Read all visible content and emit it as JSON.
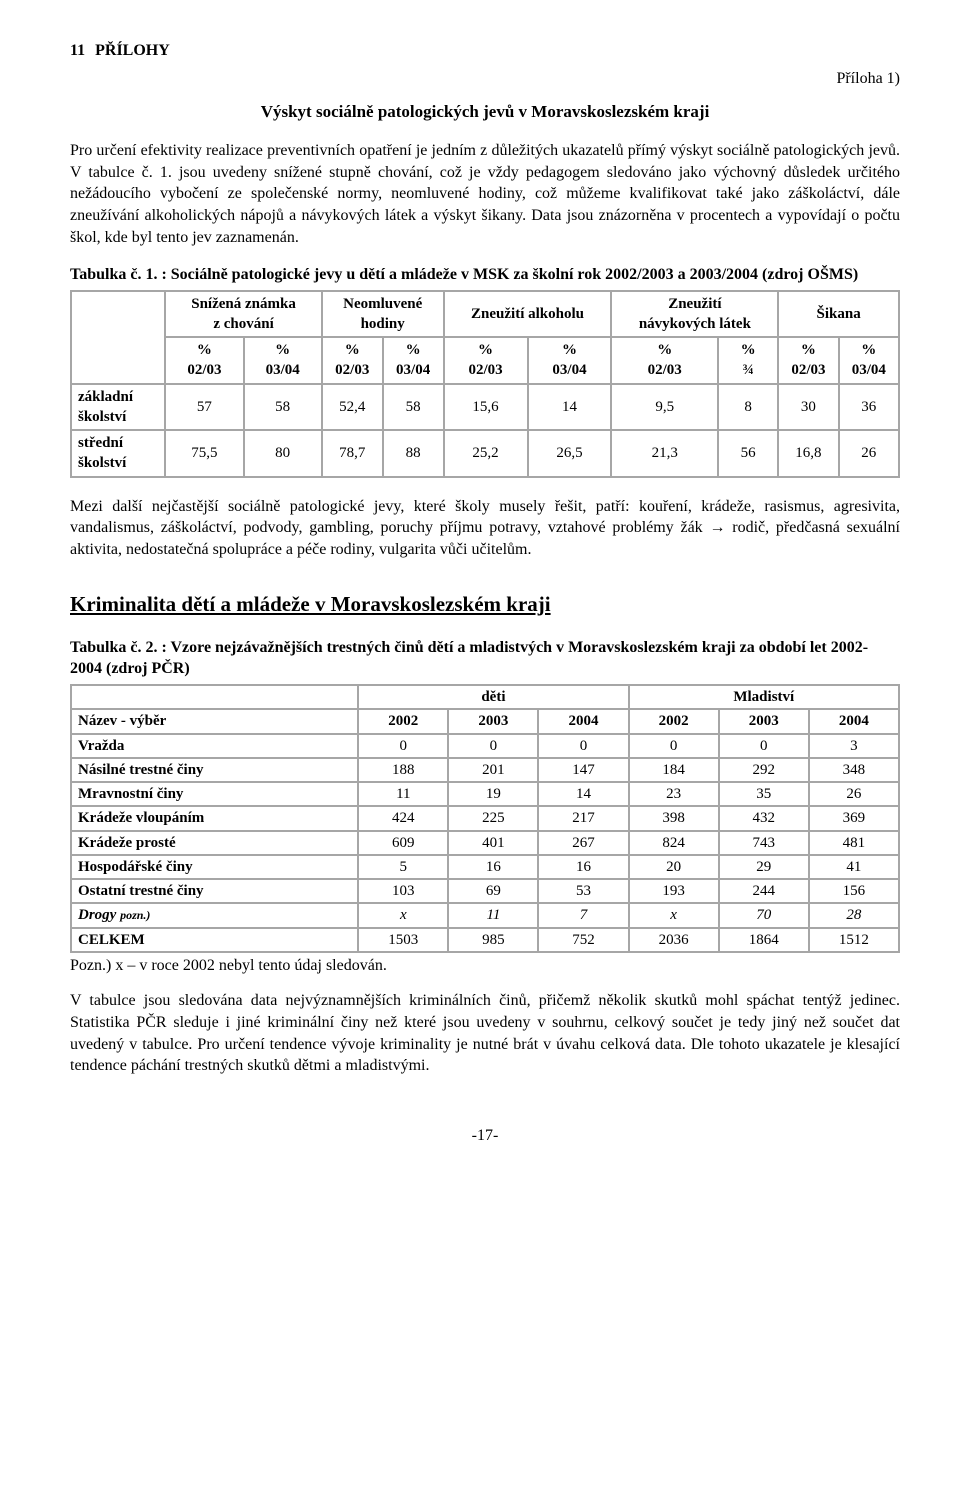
{
  "header": {
    "section_number": "11",
    "section_title": "PŘÍLOHY",
    "attachment_label": "Příloha 1)",
    "main_title": "Výskyt sociálně patologických jevů v Moravskoslezském kraji"
  },
  "paragraphs": {
    "intro": "Pro určení efektivity realizace preventivních opatření je jedním z důležitých ukazatelů přímý výskyt sociálně patologických jevů. V tabulce č. 1. jsou uvedeny snížené stupně chování, což je vždy pedagogem sledováno jako výchovný důsledek určitého nežádoucího vybočení ze společenské normy, neomluvené hodiny, což můžeme kvalifikovat také jako záškoláctví, dále zneužívání alkoholických nápojů a návykových látek a výskyt šikany. Data jsou znázorněna v procentech a vypovídají o počtu škol, kde byl tento jev zaznamenán.",
    "between": "Mezi další nejčastější sociálně patologické jevy, které školy musely řešit, patří: kouření, krádeže, rasismus, agresivita, vandalismus, záškoláctví, podvody, gambling, poruchy příjmu potravy, vztahové problémy žák → rodič, předčasná sexuální aktivita, nedostatečná spolupráce a péče rodiny, vulgarita vůči učitelům.",
    "after_t2_note": "Pozn.) x – v roce 2002 nebyl tento údaj sledován.",
    "closing": "V tabulce jsou sledována data nejvýznamnějších kriminálních činů, přičemž několik skutků mohl spáchat tentýž jedinec. Statistika PČR sleduje i jiné kriminální činy než které jsou uvedeny v souhrnu, celkový součet je tedy jiný než součet dat uvedený v tabulce. Pro určení tendence vývoje kriminality je nutné brát v úvahu celková data. Dle tohoto ukazatele je klesající tendence páchání trestných skutků dětmi a mladistvými."
  },
  "section2_heading": "Kriminalita dětí a mládeže v Moravskoslezském kraji",
  "table1": {
    "caption": "Tabulka č. 1. : Sociálně patologické jevy  u dětí a mládeže v MSK za školní rok 2002/2003 a 2003/2004 (zdroj OŠMS)",
    "groups": [
      {
        "label1": "Snížená známka",
        "label2": "z chování"
      },
      {
        "label1": "Neomluvené",
        "label2": "hodiny"
      },
      {
        "label1": "Zneužití alkoholu",
        "label2": ""
      },
      {
        "label1": "Zneužití",
        "label2": "návykových látek"
      },
      {
        "label1": "Šikana",
        "label2": ""
      }
    ],
    "subheaders": [
      "% 02/03",
      "% 03/04",
      "% 02/03",
      "% 03/04",
      "% 02/03",
      "% 03/04",
      "% 02/03",
      "% ¾",
      "% 02/03",
      "% 03/04"
    ],
    "rows": [
      {
        "label": "základní školství",
        "cells": [
          "57",
          "58",
          "52,4",
          "58",
          "15,6",
          "14",
          "9,5",
          "8",
          "30",
          "36"
        ]
      },
      {
        "label": "střední školství",
        "cells": [
          "75,5",
          "80",
          "78,7",
          "88",
          "25,2",
          "26,5",
          "21,3",
          "56",
          "16,8",
          "26"
        ]
      }
    ]
  },
  "table2": {
    "caption": "Tabulka č. 2. : Vzore nejzávažnějších trestných činů dětí a mladistvých v Moravskoslezském kraji za období let 2002-2004 (zdroj PČR)",
    "top_groups": [
      "děti",
      "Mladiství"
    ],
    "name_header": "Název - výběr",
    "years": [
      "2002",
      "2003",
      "2004",
      "2002",
      "2003",
      "2004"
    ],
    "rows": [
      {
        "name": "Vražda",
        "cells": [
          "0",
          "0",
          "0",
          "0",
          "0",
          "3"
        ],
        "bold": true
      },
      {
        "name": "Násilné trestné činy",
        "cells": [
          "188",
          "201",
          "147",
          "184",
          "292",
          "348"
        ],
        "bold": true
      },
      {
        "name": "Mravnostní činy",
        "cells": [
          "11",
          "19",
          "14",
          "23",
          "35",
          "26"
        ],
        "bold": true
      },
      {
        "name": "Krádeže vloupáním",
        "cells": [
          "424",
          "225",
          "217",
          "398",
          "432",
          "369"
        ],
        "bold": true
      },
      {
        "name": "Krádeže prosté",
        "cells": [
          "609",
          "401",
          "267",
          "824",
          "743",
          "481"
        ],
        "bold": true
      },
      {
        "name": "Hospodářské činy",
        "cells": [
          "5",
          "16",
          "16",
          "20",
          "29",
          "41"
        ],
        "bold": true
      },
      {
        "name": "Ostatní trestné činy",
        "cells": [
          "103",
          "69",
          "53",
          "193",
          "244",
          "156"
        ],
        "bold": true
      },
      {
        "name": "Drogy pozn.)",
        "cells": [
          "x",
          "11",
          "7",
          "x",
          "70",
          "28"
        ],
        "bold": false,
        "italic": true
      },
      {
        "name": "CELKEM",
        "cells": [
          "1503",
          "985",
          "752",
          "2036",
          "1864",
          "1512"
        ],
        "bold": true
      }
    ]
  },
  "page_number": "-17-"
}
